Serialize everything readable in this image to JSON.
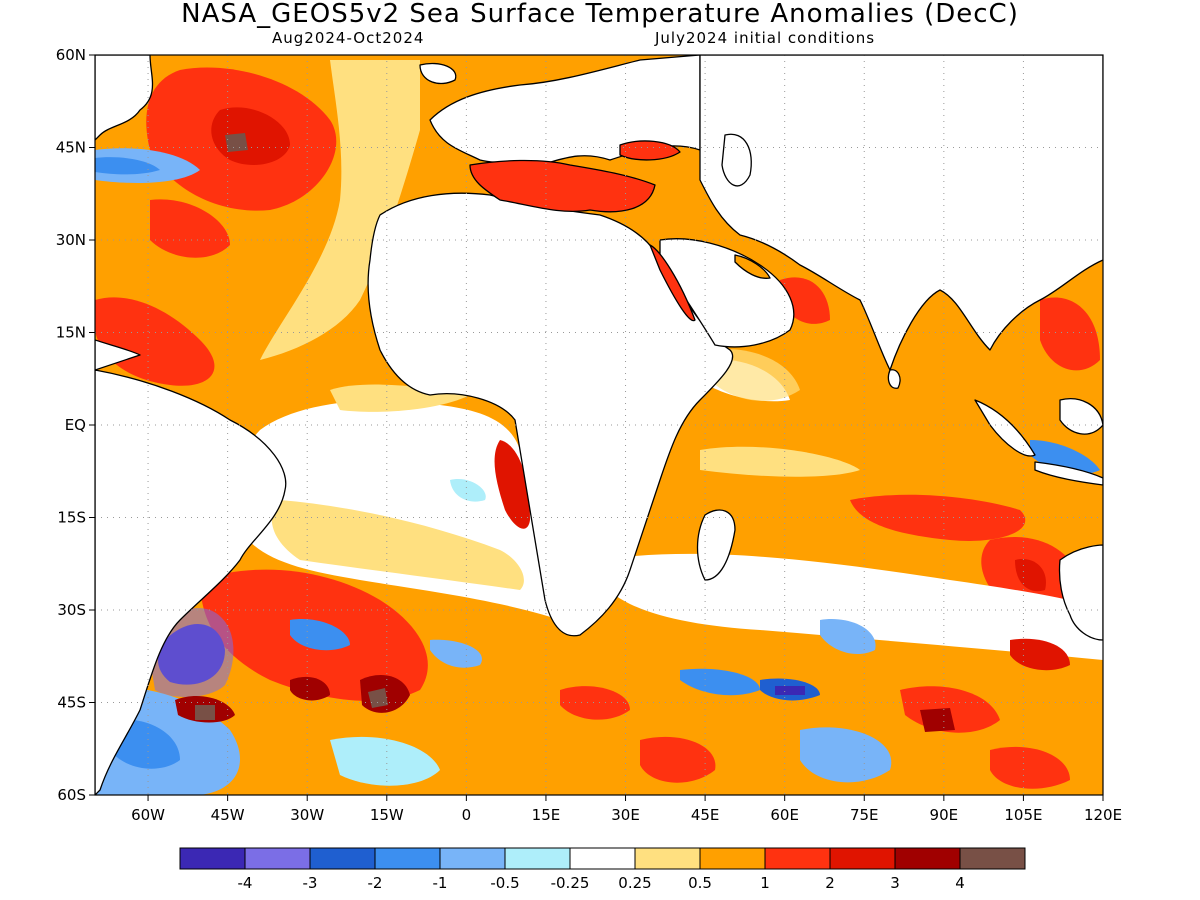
{
  "title": "NASA_GEOS5v2 Sea Surface Temperature Anomalies (DecC)",
  "subtitle_left": "Aug2024-Oct2024",
  "subtitle_right": "July2024 initial conditions",
  "map": {
    "projection": "lat-lon",
    "lon_range": [
      -70,
      120
    ],
    "lat_range": [
      -60,
      60
    ],
    "gridlines": "dotted",
    "lat_labels": [
      "60N",
      "45N",
      "30N",
      "15N",
      "EQ",
      "15S",
      "30S",
      "45S",
      "60S"
    ],
    "lat_values": [
      60,
      45,
      30,
      15,
      0,
      -15,
      -30,
      -45,
      -60
    ],
    "lon_labels": [
      "60W",
      "45W",
      "30W",
      "15W",
      "0",
      "15E",
      "30E",
      "45E",
      "60E",
      "75E",
      "90E",
      "105E",
      "120E"
    ],
    "lon_values": [
      -60,
      -45,
      -30,
      -15,
      0,
      15,
      30,
      45,
      60,
      75,
      90,
      105,
      120
    ]
  },
  "colorbar": {
    "colors": [
      "#3b28b4",
      "#7b6ee6",
      "#1f5fd0",
      "#3c8ff0",
      "#78b4f8",
      "#aeeefa",
      "#ffffff",
      "#ffe080",
      "#ffa000",
      "#ff3210",
      "#e01400",
      "#a00000",
      "#785046"
    ],
    "labels": [
      "-4",
      "-3",
      "-2",
      "-1",
      "-0.5",
      "-0.25",
      "0.25",
      "0.5",
      "1",
      "2",
      "3",
      "4"
    ]
  },
  "palette": {
    "ocean_base": "#ffa000",
    "land": "#ffffff",
    "coast": "#000000"
  }
}
